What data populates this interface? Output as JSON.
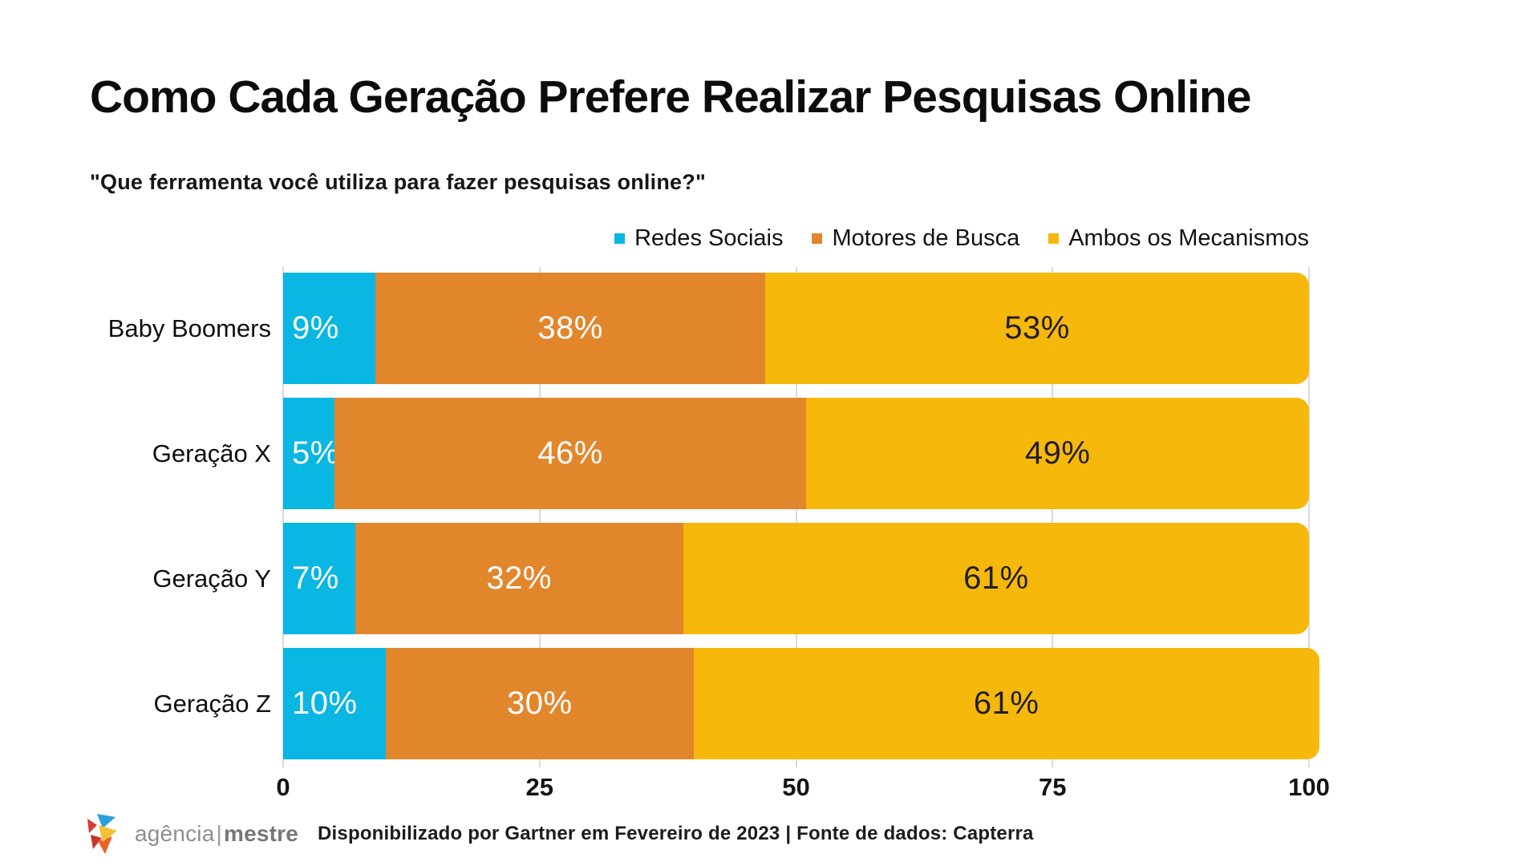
{
  "title": "Como Cada Geração Prefere Realizar Pesquisas Online",
  "subtitle": "\"Que ferramenta você utiliza para fazer pesquisas online?\"",
  "colors": {
    "redes_sociais": "#0AB6E2",
    "motores_de_busca": "#E2862C",
    "ambos_os_mecanismos": "#F7B80C",
    "gridline": "#dadada"
  },
  "chart_data": {
    "type": "bar",
    "orientation": "horizontal",
    "stacked": true,
    "grid": true,
    "legend_position": "top-right",
    "title": "Como Cada Geração Prefere Realizar Pesquisas Online",
    "subtitle": "\"Que ferramenta você utiliza para fazer pesquisas online?\"",
    "categories": [
      "Baby Boomers",
      "Geração X",
      "Geração Y",
      "Geração Z"
    ],
    "series": [
      {
        "name": "Redes Sociais",
        "color": "#0AB6E2",
        "label_color": "#ffffff",
        "values": [
          9,
          5,
          7,
          10
        ]
      },
      {
        "name": "Motores de Busca",
        "color": "#E2862C",
        "label_color": "#ffffff",
        "values": [
          38,
          46,
          32,
          30
        ]
      },
      {
        "name": "Ambos os Mecanismos",
        "color": "#F7B80C",
        "label_color": "#1f1f1f",
        "values": [
          53,
          49,
          61,
          61
        ]
      }
    ],
    "value_suffix": "%",
    "x_ticks": [
      0,
      25,
      50,
      75,
      100
    ],
    "xlim": [
      0,
      100
    ],
    "xlabel": "",
    "ylabel": ""
  },
  "footer": {
    "logo": {
      "name_left": "agência",
      "divider": "|",
      "name_right": "mestre"
    },
    "source_text": "Disponibilizado por Gartner em Fevereiro de 2023 | Fonte de dados: Capterra"
  }
}
